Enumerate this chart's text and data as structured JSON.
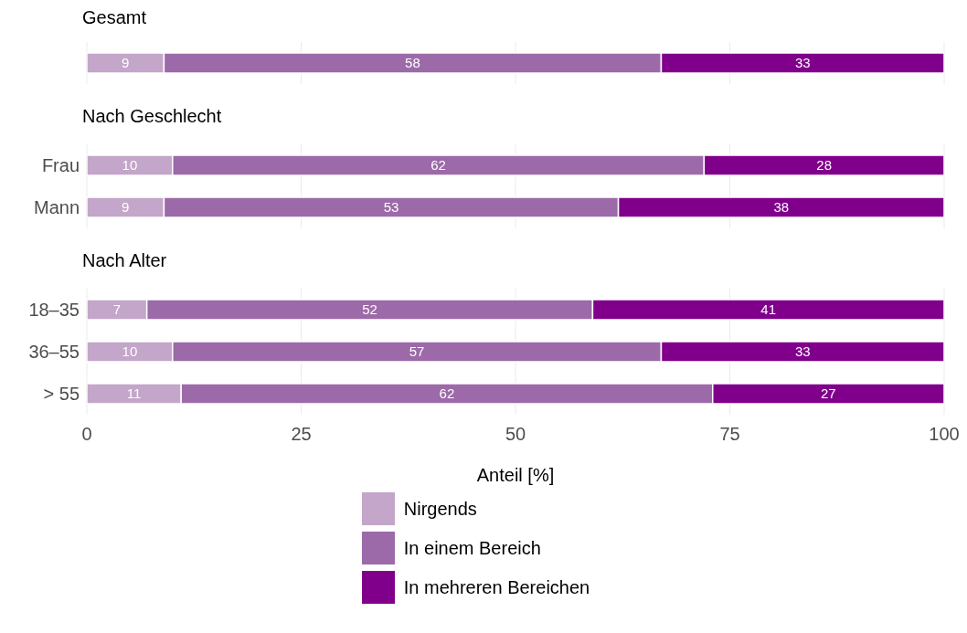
{
  "chart_data": [
    {
      "type": "bar",
      "title": "Gesamt",
      "orientation": "horizontal",
      "stacked": true,
      "data_labels": true,
      "grid": "x",
      "tick_labels": "y",
      "categories": [
        null
      ],
      "xlim": [
        0,
        100
      ],
      "xticks": [
        0,
        25,
        50,
        75,
        100
      ],
      "series": [
        {
          "color": "#c3a6c9",
          "values": [
            9
          ]
        },
        {
          "color": "#9c6aa8",
          "values": [
            58
          ]
        },
        {
          "color": "#80008b",
          "values": [
            33
          ]
        }
      ]
    },
    {
      "type": "bar",
      "title": "Nach Geschlecht",
      "orientation": "horizontal",
      "stacked": true,
      "data_labels": true,
      "grid": "x",
      "tick_labels": "y",
      "categories": [
        "Frau",
        "Mann"
      ],
      "xlim": [
        0,
        100
      ],
      "xticks": [
        0,
        25,
        50,
        75,
        100
      ],
      "series": [
        {
          "color": "#c3a6c9",
          "values": [
            10,
            9
          ]
        },
        {
          "color": "#9c6aa8",
          "values": [
            62,
            53
          ]
        },
        {
          "color": "#80008b",
          "values": [
            28,
            38
          ]
        }
      ]
    },
    {
      "type": "bar",
      "title": "Nach Alter",
      "xlabel": "Anteil [%]",
      "orientation": "horizontal",
      "stacked": true,
      "data_labels": true,
      "grid": "x",
      "legend": "bottom",
      "categories": [
        "18–35",
        "36–55",
        "> 55"
      ],
      "xlim": [
        0,
        100
      ],
      "xticks": [
        0,
        25,
        50,
        75,
        100
      ],
      "series": [
        {
          "name": "Nirgends",
          "color": "#c3a6c9",
          "values": [
            7,
            10,
            11
          ]
        },
        {
          "name": "In einem Bereich",
          "color": "#9c6aa8",
          "values": [
            52,
            57,
            62
          ]
        },
        {
          "name": "In mehreren Bereichen",
          "color": "#80008b",
          "values": [
            41,
            33,
            27
          ]
        }
      ]
    }
  ]
}
